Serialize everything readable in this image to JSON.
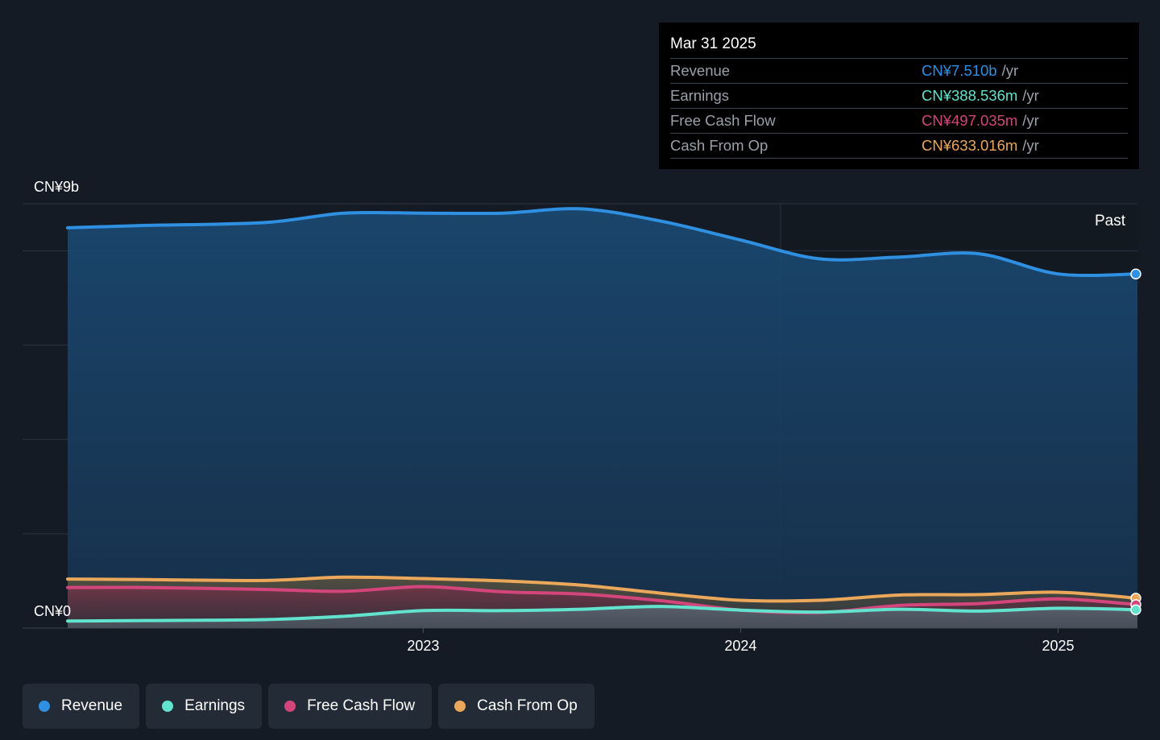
{
  "tooltip": {
    "date": "Mar 31 2025",
    "unit": "/yr",
    "rows": [
      {
        "label": "Revenue",
        "value": "CN¥7.510b",
        "color": "#2f8fe0"
      },
      {
        "label": "Earnings",
        "value": "CN¥388.536m",
        "color": "#62e3cd"
      },
      {
        "label": "Free Cash Flow",
        "value": "CN¥497.035m",
        "color": "#d4457c"
      },
      {
        "label": "Cash From Op",
        "value": "CN¥633.016m",
        "color": "#eba85a"
      }
    ]
  },
  "past_label": "Past",
  "legend": [
    {
      "label": "Revenue",
      "color": "#2f8fe0"
    },
    {
      "label": "Earnings",
      "color": "#62e3cd"
    },
    {
      "label": "Free Cash Flow",
      "color": "#d4457c"
    },
    {
      "label": "Cash From Op",
      "color": "#eba85a"
    }
  ],
  "chart_data": {
    "type": "area",
    "y_unit": "CN¥ billions",
    "ylim": [
      0,
      9
    ],
    "y_tick_labels": [
      {
        "value": 9,
        "label": "CN¥9b"
      },
      {
        "value": 0,
        "label": "CN¥0"
      }
    ],
    "y_gridlines": [
      0,
      2,
      4,
      6,
      8,
      9
    ],
    "x_tick_labels": [
      {
        "value": 2023.0,
        "label": "2023"
      },
      {
        "value": 2024.0,
        "label": "2024"
      },
      {
        "value": 2025.0,
        "label": "2025"
      }
    ],
    "xlim": [
      2021.76,
      2025.25
    ],
    "past_region_start": 2024.25,
    "series": [
      {
        "name": "Revenue",
        "color": "#2f8fe0",
        "points": [
          [
            2021.88,
            8.49
          ],
          [
            2022.13,
            8.54
          ],
          [
            2022.5,
            8.6
          ],
          [
            2022.75,
            8.8
          ],
          [
            2023.0,
            8.8
          ],
          [
            2023.25,
            8.8
          ],
          [
            2023.5,
            8.89
          ],
          [
            2023.75,
            8.63
          ],
          [
            2024.0,
            8.23
          ],
          [
            2024.25,
            7.83
          ],
          [
            2024.5,
            7.87
          ],
          [
            2024.75,
            7.94
          ],
          [
            2025.0,
            7.51
          ],
          [
            2025.25,
            7.51
          ]
        ]
      },
      {
        "name": "Earnings",
        "color": "#62e3cd",
        "points": [
          [
            2021.88,
            0.15
          ],
          [
            2022.13,
            0.16
          ],
          [
            2022.5,
            0.18
          ],
          [
            2022.75,
            0.25
          ],
          [
            2023.0,
            0.37
          ],
          [
            2023.25,
            0.37
          ],
          [
            2023.5,
            0.4
          ],
          [
            2023.75,
            0.46
          ],
          [
            2024.0,
            0.38
          ],
          [
            2024.25,
            0.34
          ],
          [
            2024.5,
            0.4
          ],
          [
            2024.75,
            0.36
          ],
          [
            2025.0,
            0.42
          ],
          [
            2025.25,
            0.389
          ]
        ]
      },
      {
        "name": "Free Cash Flow",
        "color": "#d4457c",
        "points": [
          [
            2021.88,
            0.86
          ],
          [
            2022.13,
            0.86
          ],
          [
            2022.5,
            0.82
          ],
          [
            2022.75,
            0.78
          ],
          [
            2023.0,
            0.88
          ],
          [
            2023.25,
            0.77
          ],
          [
            2023.5,
            0.72
          ],
          [
            2023.75,
            0.58
          ],
          [
            2024.0,
            0.38
          ],
          [
            2024.25,
            0.33
          ],
          [
            2024.5,
            0.48
          ],
          [
            2024.75,
            0.52
          ],
          [
            2025.0,
            0.62
          ],
          [
            2025.25,
            0.497
          ]
        ]
      },
      {
        "name": "Cash From Op",
        "color": "#eba85a",
        "points": [
          [
            2021.88,
            1.04
          ],
          [
            2022.13,
            1.03
          ],
          [
            2022.5,
            1.01
          ],
          [
            2022.75,
            1.08
          ],
          [
            2023.0,
            1.05
          ],
          [
            2023.25,
            1.0
          ],
          [
            2023.5,
            0.91
          ],
          [
            2023.75,
            0.74
          ],
          [
            2024.0,
            0.59
          ],
          [
            2024.25,
            0.59
          ],
          [
            2024.5,
            0.7
          ],
          [
            2024.75,
            0.71
          ],
          [
            2025.0,
            0.76
          ],
          [
            2025.25,
            0.633
          ]
        ]
      }
    ]
  }
}
